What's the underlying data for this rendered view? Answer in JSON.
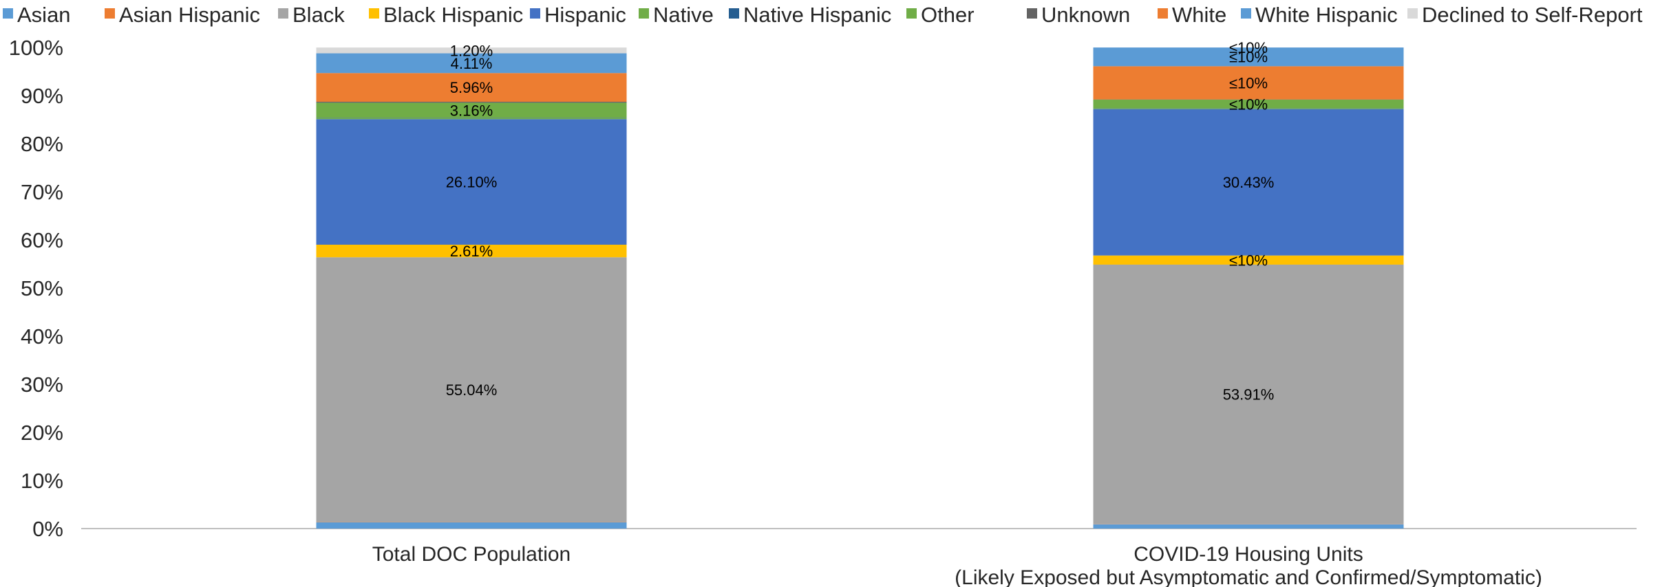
{
  "chart_data": {
    "type": "bar",
    "stacked": true,
    "normalized": true,
    "legend_position": "top",
    "grid": false,
    "ylim": [
      0,
      100
    ],
    "yticks": [
      "0%",
      "10%",
      "20%",
      "30%",
      "40%",
      "50%",
      "60%",
      "70%",
      "80%",
      "90%",
      "100%"
    ],
    "categories": [
      [
        "Total DOC Population"
      ],
      [
        "COVID-19 Housing Units",
        "(Likely Exposed but Asymptomatic and Confirmed/Symptomatic)"
      ]
    ],
    "series": [
      {
        "name": "Asian",
        "color": "#5B9BD5",
        "values": [
          1.3,
          0.9
        ],
        "labels": [
          "",
          ""
        ]
      },
      {
        "name": "Asian Hispanic",
        "color": "#ED7D31",
        "values": [
          0.05,
          0.05
        ],
        "labels": [
          "",
          ""
        ]
      },
      {
        "name": "Black",
        "color": "#A5A5A5",
        "values": [
          55.04,
          53.91
        ],
        "labels": [
          "55.04%",
          "53.91%"
        ]
      },
      {
        "name": "Black Hispanic",
        "color": "#FFC000",
        "values": [
          2.61,
          1.9
        ],
        "labels": [
          "2.61%",
          "≤10%"
        ]
      },
      {
        "name": "Hispanic",
        "color": "#4472C4",
        "values": [
          26.1,
          30.43
        ],
        "labels": [
          "26.10%",
          "30.43%"
        ]
      },
      {
        "name": "Native",
        "color": "#70AD47",
        "values": [
          0.2,
          0.1
        ],
        "labels": [
          "",
          ""
        ]
      },
      {
        "name": "Native Hispanic",
        "color": "#255E91",
        "values": [
          0.05,
          0.05
        ],
        "labels": [
          "",
          ""
        ]
      },
      {
        "name": "Other",
        "color": "#70AD47",
        "values": [
          3.16,
          1.8
        ],
        "labels": [
          "3.16%",
          "≤10%"
        ]
      },
      {
        "name": "Unknown",
        "color": "#636363",
        "values": [
          0.2,
          0.05
        ],
        "labels": [
          "",
          ""
        ]
      },
      {
        "name": "White",
        "color": "#ED7D31",
        "values": [
          5.96,
          6.9
        ],
        "labels": [
          "5.96%",
          "≤10%"
        ]
      },
      {
        "name": "White Hispanic",
        "color": "#5B9BD5",
        "values": [
          4.11,
          3.9
        ],
        "labels": [
          "4.11%",
          "≤10%"
        ]
      },
      {
        "name": "Declined to Self-Report",
        "color": "#D9D9D9",
        "values": [
          1.2,
          0.01
        ],
        "labels": [
          "1.20%",
          "≤10%"
        ]
      }
    ]
  }
}
